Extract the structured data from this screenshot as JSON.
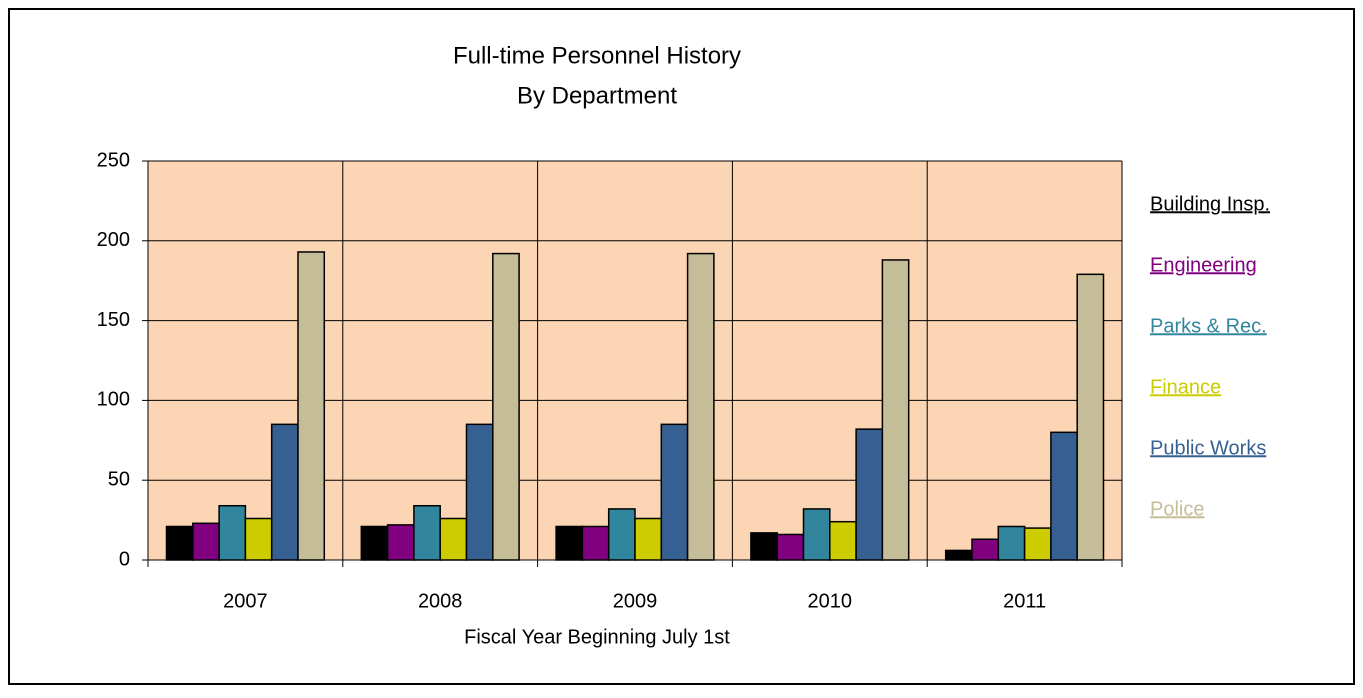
{
  "chart_data": {
    "type": "bar",
    "title": "Full-time Personnel History",
    "subtitle": "By Department",
    "x_label": "Fiscal Year Beginning July 1st",
    "categories": [
      "2007",
      "2008",
      "2009",
      "2010",
      "2011"
    ],
    "series": [
      {
        "name": "Building Insp.",
        "color": "#000000",
        "values": [
          21,
          21,
          21,
          17,
          6
        ]
      },
      {
        "name": "Engineering",
        "color": "#800080",
        "values": [
          23,
          22,
          21,
          16,
          13
        ]
      },
      {
        "name": "Parks & Rec.",
        "color": "#31859c",
        "values": [
          34,
          34,
          32,
          32,
          21
        ]
      },
      {
        "name": "Finance",
        "color": "#cccc00",
        "values": [
          26,
          26,
          26,
          24,
          20
        ]
      },
      {
        "name": "Public Works",
        "color": "#376092",
        "values": [
          85,
          85,
          85,
          82,
          80
        ]
      },
      {
        "name": "Police",
        "color": "#c4bd97",
        "values": [
          193,
          192,
          192,
          188,
          179
        ]
      }
    ],
    "ylim": [
      0,
      250
    ],
    "yticks": [
      0,
      50,
      100,
      150,
      200,
      250
    ],
    "grid": true,
    "plot_background": "#fcd5b5",
    "legend": "right"
  }
}
